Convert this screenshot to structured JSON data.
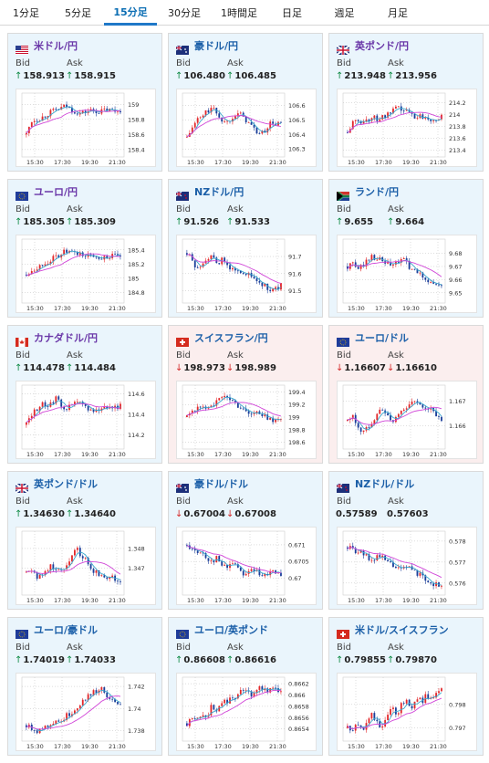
{
  "tabs": [
    {
      "label": "1分足",
      "active": false
    },
    {
      "label": "5分足",
      "active": false
    },
    {
      "label": "15分足",
      "active": true
    },
    {
      "label": "30分足",
      "active": false
    },
    {
      "label": "1時間足",
      "active": false
    },
    {
      "label": "日足",
      "active": false
    },
    {
      "label": "週足",
      "active": false
    },
    {
      "label": "月足",
      "active": false
    }
  ],
  "labels": {
    "bid": "Bid",
    "ask": "Ask"
  },
  "colors": {
    "card_blue_bg": "#eaf5fc",
    "card_pink_bg": "#fbeeee",
    "up_arrow": "#0d8a43",
    "down_arrow": "#d62b2b",
    "candle_up": "#e3282b",
    "candle_down": "#1b3e9a",
    "ma_short": "#38a6cc",
    "ma_long": "#d147d8"
  },
  "cards": [
    {
      "pair": "米ドル/円",
      "flag": "us-flag",
      "name_color": "purple",
      "theme": "blue",
      "bid_dir": "up",
      "bid": "158.913",
      "ask_dir": "up",
      "ask": "158.915",
      "chart_data": {
        "type": "candlestick",
        "x_ticks": [
          "15:30",
          "17:30",
          "19:30",
          "21:30"
        ],
        "y_ticks": [
          "159",
          "158.8",
          "158.6",
          "158.4"
        ],
        "ylim": [
          158.35,
          159.1
        ],
        "trend": [
          158.6,
          158.78,
          158.8,
          158.82,
          158.86,
          158.9,
          158.92,
          158.95,
          158.98,
          158.93,
          158.9,
          158.88,
          158.9,
          158.92,
          158.91,
          158.9,
          158.93,
          158.92,
          158.91,
          158.93
        ]
      }
    },
    {
      "pair": "豪ドル/円",
      "flag": "au-flag",
      "name_color": "blue",
      "theme": "blue",
      "bid_dir": "up",
      "bid": "106.480",
      "ask_dir": "up",
      "ask": "106.485",
      "chart_data": {
        "type": "candlestick",
        "x_ticks": [
          "15:30",
          "17:30",
          "19:30",
          "21:30"
        ],
        "y_ticks": [
          "106.6",
          "106.5",
          "106.4",
          "106.3"
        ],
        "ylim": [
          106.27,
          106.66
        ],
        "trend": [
          106.38,
          106.44,
          106.5,
          106.52,
          106.56,
          106.58,
          106.55,
          106.5,
          106.48,
          106.52,
          106.55,
          106.53,
          106.5,
          106.46,
          106.42,
          106.4,
          106.44,
          106.48,
          106.47,
          106.48
        ]
      }
    },
    {
      "pair": "英ポンド/円",
      "flag": "uk-flag",
      "name_color": "purple",
      "theme": "blue",
      "bid_dir": "up",
      "bid": "213.948",
      "ask_dir": "up",
      "ask": "213.956",
      "chart_data": {
        "type": "candlestick",
        "x_ticks": [
          "15:30",
          "17:30",
          "19:30",
          "21:30"
        ],
        "y_ticks": [
          "214.2",
          "214",
          "213.8",
          "213.6",
          "213.4"
        ],
        "ylim": [
          213.35,
          214.3
        ],
        "trend": [
          213.7,
          213.85,
          213.9,
          213.88,
          213.92,
          213.95,
          213.93,
          213.96,
          213.98,
          214.05,
          214.1,
          214.08,
          214.05,
          214.0,
          213.96,
          213.98,
          213.95,
          213.93,
          213.94,
          213.95
        ]
      }
    },
    {
      "pair": "ユーロ/円",
      "flag": "eu-flag",
      "name_color": "purple",
      "theme": "blue",
      "bid_dir": "up",
      "bid": "185.305",
      "ask_dir": "up",
      "ask": "185.309",
      "chart_data": {
        "type": "candlestick",
        "x_ticks": [
          "15:30",
          "17:30",
          "19:30",
          "21:30"
        ],
        "y_ticks": [
          "185.4",
          "185.2",
          "185",
          "184.8"
        ],
        "ylim": [
          184.7,
          185.5
        ],
        "trend": [
          185.05,
          185.12,
          185.15,
          185.18,
          185.22,
          185.26,
          185.3,
          185.34,
          185.38,
          185.36,
          185.33,
          185.35,
          185.3,
          185.32,
          185.31,
          185.29,
          185.3,
          185.31,
          185.3,
          185.31
        ]
      }
    },
    {
      "pair": "NZドル/円",
      "flag": "nz-flag",
      "name_color": "blue",
      "theme": "blue",
      "bid_dir": "up",
      "bid": "91.526",
      "ask_dir": "up",
      "ask": "91.533",
      "chart_data": {
        "type": "candlestick",
        "x_ticks": [
          "15:30",
          "17:30",
          "19:30",
          "21:30"
        ],
        "y_ticks": [
          "91.7",
          "91.6",
          "91.5"
        ],
        "ylim": [
          91.45,
          91.78
        ],
        "trend": [
          91.72,
          91.68,
          91.62,
          91.66,
          91.7,
          91.69,
          91.66,
          91.68,
          91.65,
          91.63,
          91.6,
          91.62,
          91.6,
          91.58,
          91.56,
          91.54,
          91.52,
          91.5,
          91.51,
          91.53
        ]
      }
    },
    {
      "pair": "ランド/円",
      "flag": "za-flag",
      "name_color": "blue",
      "theme": "blue",
      "bid_dir": "up",
      "bid": "9.655",
      "ask_dir": "up",
      "ask": "9.664",
      "chart_data": {
        "type": "candlestick",
        "x_ticks": [
          "15:30",
          "17:30",
          "19:30",
          "21:30"
        ],
        "y_ticks": [
          "9.68",
          "9.67",
          "9.66",
          "9.65"
        ],
        "ylim": [
          9.645,
          9.688
        ],
        "trend": [
          9.67,
          9.672,
          9.668,
          9.671,
          9.675,
          9.678,
          9.676,
          9.674,
          9.672,
          9.67,
          9.673,
          9.676,
          9.672,
          9.668,
          9.665,
          9.663,
          9.66,
          9.658,
          9.655,
          9.656
        ]
      }
    },
    {
      "pair": "カナダドル/円",
      "flag": "ca-flag",
      "name_color": "purple",
      "theme": "blue",
      "bid_dir": "up",
      "bid": "114.478",
      "ask_dir": "up",
      "ask": "114.484",
      "chart_data": {
        "type": "candlestick",
        "x_ticks": [
          "15:30",
          "17:30",
          "19:30",
          "21:30"
        ],
        "y_ticks": [
          "114.6",
          "114.4",
          "114.2"
        ],
        "ylim": [
          114.1,
          114.65
        ],
        "trend": [
          114.3,
          114.4,
          114.45,
          114.5,
          114.48,
          114.52,
          114.55,
          114.5,
          114.46,
          114.48,
          114.52,
          114.5,
          114.47,
          114.45,
          114.44,
          114.46,
          114.48,
          114.47,
          114.48,
          114.48
        ]
      }
    },
    {
      "pair": "スイスフラン/円",
      "flag": "ch-flag",
      "name_color": "blue",
      "theme": "pink",
      "bid_dir": "down",
      "bid": "198.973",
      "ask_dir": "down",
      "ask": "198.989",
      "chart_data": {
        "type": "candlestick",
        "x_ticks": [
          "15:30",
          "17:30",
          "19:30",
          "21:30"
        ],
        "y_ticks": [
          "199.4",
          "199.2",
          "199",
          "198.8",
          "198.6"
        ],
        "ylim": [
          198.55,
          199.45
        ],
        "trend": [
          199.0,
          199.1,
          199.15,
          199.12,
          199.18,
          199.2,
          199.25,
          199.3,
          199.32,
          199.28,
          199.2,
          199.15,
          199.1,
          199.05,
          199.08,
          199.02,
          199.0,
          198.96,
          198.97,
          198.98
        ]
      }
    },
    {
      "pair": "ユーロ/ドル",
      "flag": "eu-flag",
      "name_color": "blue",
      "theme": "pink",
      "bid_dir": "down",
      "bid": "1.16607",
      "ask_dir": "down",
      "ask": "1.16610",
      "chart_data": {
        "type": "candlestick",
        "x_ticks": [
          "15:30",
          "17:30",
          "19:30",
          "21:30"
        ],
        "y_ticks": [
          "1.167",
          "1.166"
        ],
        "ylim": [
          1.1652,
          1.1675
        ],
        "trend": [
          1.1662,
          1.1664,
          1.166,
          1.1657,
          1.1659,
          1.1662,
          1.1665,
          1.1667,
          1.1664,
          1.1661,
          1.1664,
          1.1666,
          1.1668,
          1.167,
          1.1669,
          1.1667,
          1.1668,
          1.1666,
          1.1664,
          1.1661
        ]
      }
    },
    {
      "pair": "英ポンド/ドル",
      "flag": "uk-flag",
      "name_color": "blue",
      "theme": "blue",
      "bid_dir": "up",
      "bid": "1.34630",
      "ask_dir": "up",
      "ask": "1.34640",
      "chart_data": {
        "type": "candlestick",
        "x_ticks": [
          "15:30",
          "17:30",
          "19:30",
          "21:30"
        ],
        "y_ticks": [
          "1.348",
          "1.347"
        ],
        "ylim": [
          1.3458,
          1.3487
        ],
        "trend": [
          1.3468,
          1.347,
          1.3466,
          1.3465,
          1.3469,
          1.3471,
          1.347,
          1.3468,
          1.3472,
          1.3476,
          1.348,
          1.3477,
          1.3474,
          1.347,
          1.3468,
          1.3466,
          1.3465,
          1.3467,
          1.3464,
          1.3463
        ]
      }
    },
    {
      "pair": "豪ドル/ドル",
      "flag": "au-flag",
      "name_color": "blue",
      "theme": "blue",
      "bid_dir": "down",
      "bid": "0.67004",
      "ask_dir": "down",
      "ask": "0.67008",
      "chart_data": {
        "type": "candlestick",
        "x_ticks": [
          "15:30",
          "17:30",
          "19:30",
          "21:30"
        ],
        "y_ticks": [
          "0.671",
          "0.6705",
          "0.67"
        ],
        "ylim": [
          0.6696,
          0.6713
        ],
        "trend": [
          0.671,
          0.6709,
          0.6707,
          0.6708,
          0.6706,
          0.6705,
          0.6706,
          0.6704,
          0.6703,
          0.6705,
          0.6704,
          0.6702,
          0.6701,
          0.6703,
          0.6702,
          0.67,
          0.6701,
          0.6703,
          0.6702,
          0.67
        ]
      }
    },
    {
      "pair": "NZドル/ドル",
      "flag": "nz-flag",
      "name_color": "blue",
      "theme": "blue",
      "bid_dir": "none",
      "bid": "0.57589",
      "ask_dir": "none",
      "ask": "0.57603",
      "chart_data": {
        "type": "candlestick",
        "x_ticks": [
          "15:30",
          "17:30",
          "19:30",
          "21:30"
        ],
        "y_ticks": [
          "0.578",
          "0.577",
          "0.576"
        ],
        "ylim": [
          0.5756,
          0.5783
        ],
        "trend": [
          0.5777,
          0.5776,
          0.5775,
          0.5774,
          0.5772,
          0.5771,
          0.5773,
          0.5772,
          0.577,
          0.5769,
          0.5767,
          0.5766,
          0.5768,
          0.5767,
          0.5765,
          0.5763,
          0.5762,
          0.576,
          0.5759,
          0.5759
        ]
      }
    },
    {
      "pair": "ユーロ/豪ドル",
      "flag": "eu-flag",
      "name_color": "blue",
      "theme": "blue",
      "bid_dir": "up",
      "bid": "1.74019",
      "ask_dir": "up",
      "ask": "1.74033",
      "chart_data": {
        "type": "candlestick",
        "x_ticks": [
          "15:30",
          "17:30",
          "19:30",
          "21:30"
        ],
        "y_ticks": [
          "1.742",
          "1.74",
          "1.738"
        ],
        "ylim": [
          1.7374,
          1.7425
        ],
        "trend": [
          1.7385,
          1.7383,
          1.738,
          1.7382,
          1.7384,
          1.7387,
          1.739,
          1.7388,
          1.7393,
          1.7396,
          1.74,
          1.7405,
          1.741,
          1.7413,
          1.7416,
          1.7418,
          1.7414,
          1.7408,
          1.7404,
          1.7402
        ]
      }
    },
    {
      "pair": "ユーロ/英ポンド",
      "flag": "eu-flag",
      "name_color": "blue",
      "theme": "blue",
      "bid_dir": "up",
      "bid": "0.86608",
      "ask_dir": "up",
      "ask": "0.86616",
      "chart_data": {
        "type": "candlestick",
        "x_ticks": [
          "15:30",
          "17:30",
          "19:30",
          "21:30"
        ],
        "y_ticks": [
          "0.8662",
          "0.866",
          "0.8658",
          "0.8656",
          "0.8654"
        ],
        "ylim": [
          0.86525,
          0.86625
        ],
        "trend": [
          0.8655,
          0.8656,
          0.86555,
          0.8657,
          0.8656,
          0.8658,
          0.86575,
          0.8659,
          0.86585,
          0.866,
          0.86595,
          0.8661,
          0.86605,
          0.866,
          0.86612,
          0.86615,
          0.86608,
          0.86612,
          0.8661,
          0.86608
        ]
      }
    },
    {
      "pair": "米ドル/スイスフラン",
      "flag": "ch-flag",
      "name_color": "blue",
      "theme": "blue",
      "bid_dir": "up",
      "bid": "0.79855",
      "ask_dir": "up",
      "ask": "0.79870",
      "chart_data": {
        "type": "candlestick",
        "x_ticks": [
          "15:30",
          "17:30",
          "19:30",
          "21:30"
        ],
        "y_ticks": [
          "0.798",
          "0.797"
        ],
        "ylim": [
          0.7966,
          0.799
        ],
        "trend": [
          0.797,
          0.7968,
          0.7972,
          0.7969,
          0.7974,
          0.7976,
          0.7972,
          0.797,
          0.7975,
          0.7978,
          0.7976,
          0.798,
          0.7982,
          0.7979,
          0.7983,
          0.7981,
          0.7984,
          0.7982,
          0.7985,
          0.7986
        ]
      }
    }
  ]
}
